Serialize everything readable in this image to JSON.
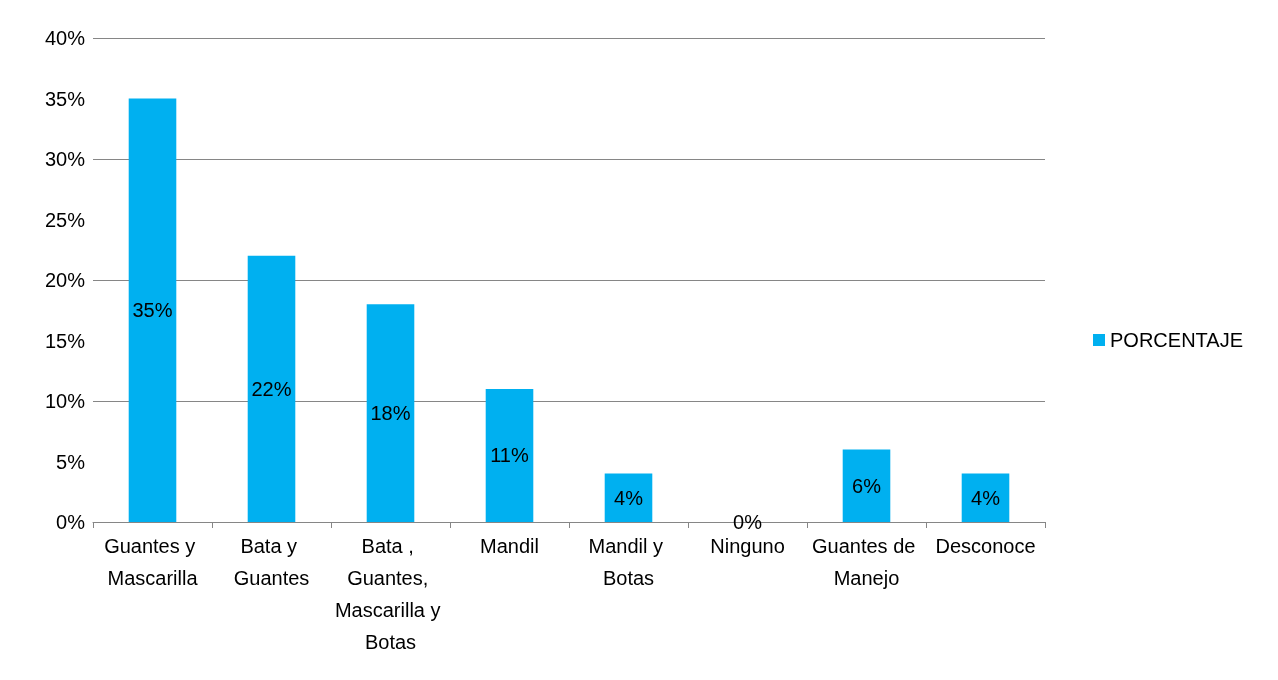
{
  "chart_data": {
    "type": "bar",
    "categories": [
      "Guantes y Mascarilla",
      "Bata y Guantes",
      "Bata , Guantes, Mascarilla y Botas",
      "Mandil",
      "Mandil y Botas",
      "Ninguno",
      "Guantes de Manejo",
      "Desconoce"
    ],
    "series": [
      {
        "name": "PORCENTAJE",
        "color": "#00b0f0",
        "values": [
          35,
          22,
          18,
          11,
          4,
          0,
          6,
          4
        ],
        "value_labels": [
          "35%",
          "22%",
          "18%",
          "11%",
          "4%",
          "0%",
          "6%",
          "4%"
        ]
      }
    ],
    "ylim": [
      0,
      40
    ],
    "yticks": [
      {
        "value": 0,
        "label": "0%"
      },
      {
        "value": 5,
        "label": "5%"
      },
      {
        "value": 10,
        "label": "10%"
      },
      {
        "value": 15,
        "label": "15%"
      },
      {
        "value": 20,
        "label": "20%"
      },
      {
        "value": 25,
        "label": "25%"
      },
      {
        "value": 30,
        "label": "30%"
      },
      {
        "value": 35,
        "label": "35%"
      },
      {
        "value": 40,
        "label": "40%"
      }
    ],
    "grid": true,
    "legend": "right"
  }
}
